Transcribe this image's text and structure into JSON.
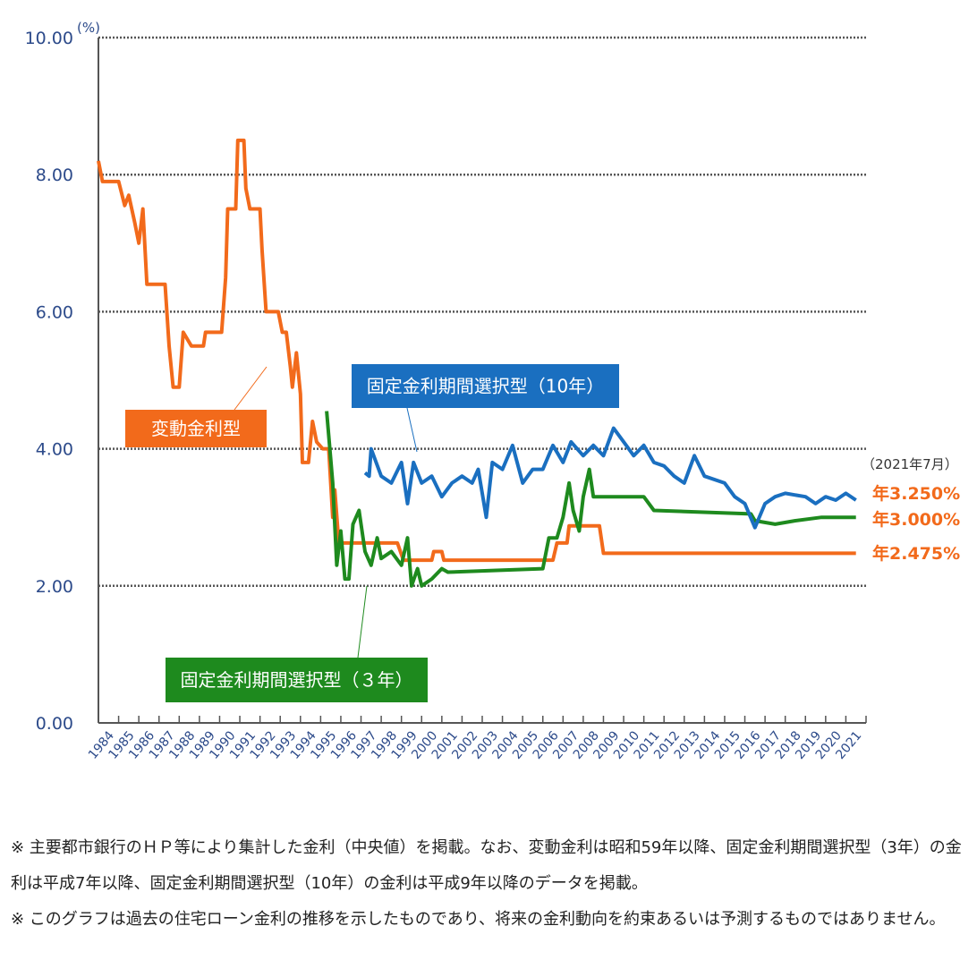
{
  "chart_data": {
    "type": "line",
    "yunit": "(%)",
    "ylim": [
      0,
      10
    ],
    "yticks": [
      "0.00",
      "2.00",
      "4.00",
      "6.00",
      "8.00",
      "10.00"
    ],
    "xlim": [
      1984,
      2021.6
    ],
    "xticks": [
      "1984",
      "1985",
      "1986",
      "1987",
      "1988",
      "1989",
      "1990",
      "1991",
      "1992",
      "1993",
      "1994",
      "1995",
      "1996",
      "1997",
      "1998",
      "1999",
      "2000",
      "2001",
      "2002",
      "2003",
      "2004",
      "2005",
      "2006",
      "2007",
      "2008",
      "2009",
      "2010",
      "2011",
      "2012",
      "2013",
      "2014",
      "2015",
      "2016",
      "2017",
      "2018",
      "2019",
      "2020",
      "2021"
    ],
    "grid": "horizontal-dotted",
    "date_note": "（2021年7月）",
    "series": [
      {
        "name": "変動金利型",
        "color": "#f26a1b",
        "end_label": "年2.475%",
        "points": [
          [
            1984.0,
            8.2
          ],
          [
            1984.2,
            7.9
          ],
          [
            1985.0,
            7.9
          ],
          [
            1985.3,
            7.55
          ],
          [
            1985.5,
            7.7
          ],
          [
            1985.8,
            7.3
          ],
          [
            1986.0,
            7.0
          ],
          [
            1986.2,
            7.5
          ],
          [
            1986.4,
            6.4
          ],
          [
            1987.3,
            6.4
          ],
          [
            1987.5,
            5.5
          ],
          [
            1987.7,
            4.9
          ],
          [
            1988.0,
            4.9
          ],
          [
            1988.2,
            5.7
          ],
          [
            1988.6,
            5.5
          ],
          [
            1989.2,
            5.5
          ],
          [
            1989.3,
            5.7
          ],
          [
            1990.1,
            5.7
          ],
          [
            1990.3,
            6.5
          ],
          [
            1990.4,
            7.5
          ],
          [
            1990.8,
            7.5
          ],
          [
            1990.9,
            8.5
          ],
          [
            1991.2,
            8.5
          ],
          [
            1991.3,
            7.8
          ],
          [
            1991.5,
            7.5
          ],
          [
            1992.0,
            7.5
          ],
          [
            1992.1,
            6.9
          ],
          [
            1992.3,
            6.0
          ],
          [
            1992.9,
            6.0
          ],
          [
            1993.1,
            5.7
          ],
          [
            1993.3,
            5.7
          ],
          [
            1993.5,
            5.2
          ],
          [
            1993.6,
            4.9
          ],
          [
            1993.8,
            5.4
          ],
          [
            1994.0,
            4.8
          ],
          [
            1994.1,
            3.8
          ],
          [
            1994.4,
            3.8
          ],
          [
            1994.6,
            4.4
          ],
          [
            1994.8,
            4.1
          ],
          [
            1995.1,
            4.0
          ],
          [
            1995.4,
            4.0
          ],
          [
            1995.6,
            3.0
          ],
          [
            1995.7,
            3.4
          ],
          [
            1995.9,
            2.625
          ],
          [
            1998.8,
            2.625
          ],
          [
            1999.1,
            2.375
          ],
          [
            2000.5,
            2.375
          ],
          [
            2000.6,
            2.5
          ],
          [
            2001.0,
            2.5
          ],
          [
            2001.1,
            2.375
          ],
          [
            2006.5,
            2.375
          ],
          [
            2006.7,
            2.625
          ],
          [
            2007.2,
            2.625
          ],
          [
            2007.3,
            2.875
          ],
          [
            2008.8,
            2.875
          ],
          [
            2009.0,
            2.475
          ],
          [
            2021.5,
            2.475
          ]
        ]
      },
      {
        "name": "固定金利期間選択型（10年）",
        "color": "#1a6fc0",
        "end_label": "年3.250%",
        "points": [
          [
            1997.2,
            3.65
          ],
          [
            1997.4,
            3.6
          ],
          [
            1997.5,
            4.0
          ],
          [
            1998.0,
            3.6
          ],
          [
            1998.5,
            3.5
          ],
          [
            1999.0,
            3.8
          ],
          [
            1999.3,
            3.2
          ],
          [
            1999.6,
            3.8
          ],
          [
            2000.0,
            3.5
          ],
          [
            2000.5,
            3.6
          ],
          [
            2001.0,
            3.3
          ],
          [
            2001.5,
            3.5
          ],
          [
            2002.0,
            3.6
          ],
          [
            2002.5,
            3.5
          ],
          [
            2002.8,
            3.7
          ],
          [
            2003.2,
            3.0
          ],
          [
            2003.5,
            3.8
          ],
          [
            2004.0,
            3.7
          ],
          [
            2004.5,
            4.05
          ],
          [
            2005.0,
            3.5
          ],
          [
            2005.5,
            3.7
          ],
          [
            2006.0,
            3.7
          ],
          [
            2006.5,
            4.05
          ],
          [
            2007.0,
            3.8
          ],
          [
            2007.4,
            4.1
          ],
          [
            2008.0,
            3.9
          ],
          [
            2008.5,
            4.05
          ],
          [
            2009.0,
            3.9
          ],
          [
            2009.5,
            4.3
          ],
          [
            2010.0,
            4.1
          ],
          [
            2010.5,
            3.9
          ],
          [
            2011.0,
            4.05
          ],
          [
            2011.5,
            3.8
          ],
          [
            2012.0,
            3.75
          ],
          [
            2012.5,
            3.6
          ],
          [
            2013.0,
            3.5
          ],
          [
            2013.5,
            3.9
          ],
          [
            2014.0,
            3.6
          ],
          [
            2015.0,
            3.5
          ],
          [
            2015.5,
            3.3
          ],
          [
            2016.0,
            3.2
          ],
          [
            2016.5,
            2.85
          ],
          [
            2017.0,
            3.2
          ],
          [
            2017.5,
            3.3
          ],
          [
            2018.0,
            3.35
          ],
          [
            2019.0,
            3.3
          ],
          [
            2019.5,
            3.2
          ],
          [
            2020.0,
            3.3
          ],
          [
            2020.5,
            3.25
          ],
          [
            2021.0,
            3.35
          ],
          [
            2021.5,
            3.25
          ]
        ]
      },
      {
        "name": "固定金利期間選択型（３年）",
        "color": "#1e8a1e",
        "end_label": "年3.000%",
        "points": [
          [
            1995.3,
            4.55
          ],
          [
            1995.6,
            3.5
          ],
          [
            1995.8,
            2.3
          ],
          [
            1996.0,
            2.8
          ],
          [
            1996.2,
            2.1
          ],
          [
            1996.4,
            2.1
          ],
          [
            1996.6,
            2.9
          ],
          [
            1996.9,
            3.1
          ],
          [
            1997.2,
            2.5
          ],
          [
            1997.5,
            2.3
          ],
          [
            1997.8,
            2.7
          ],
          [
            1998.0,
            2.4
          ],
          [
            1998.5,
            2.5
          ],
          [
            1999.0,
            2.3
          ],
          [
            1999.3,
            2.7
          ],
          [
            1999.5,
            2.0
          ],
          [
            1999.8,
            2.25
          ],
          [
            2000.0,
            2.0
          ],
          [
            2000.5,
            2.1
          ],
          [
            2001.0,
            2.25
          ],
          [
            2001.3,
            2.2
          ],
          [
            2006.0,
            2.25
          ],
          [
            2006.3,
            2.7
          ],
          [
            2006.7,
            2.7
          ],
          [
            2007.0,
            3.0
          ],
          [
            2007.3,
            3.5
          ],
          [
            2007.5,
            3.1
          ],
          [
            2007.8,
            2.8
          ],
          [
            2008.0,
            3.3
          ],
          [
            2008.3,
            3.7
          ],
          [
            2008.5,
            3.3
          ],
          [
            2011.0,
            3.3
          ],
          [
            2011.5,
            3.1
          ],
          [
            2016.3,
            3.05
          ],
          [
            2016.5,
            2.95
          ],
          [
            2017.5,
            2.9
          ],
          [
            2018.5,
            2.95
          ],
          [
            2019.8,
            3.0
          ],
          [
            2021.5,
            3.0
          ]
        ]
      }
    ]
  },
  "footnotes": [
    "※ 主要都市銀行のＨＰ等により集計した金利（中央値）を掲載。なお、変動金利は昭和59年以降、固定金利期間選択型（3年）の金利は平成7年以降、固定金利期間選択型（10年）の金利は平成9年以降のデータを掲載。",
    "※ このグラフは過去の住宅ローン金利の推移を示したものであり、将来の金利動向を約束あるいは予測するものではありません。"
  ]
}
